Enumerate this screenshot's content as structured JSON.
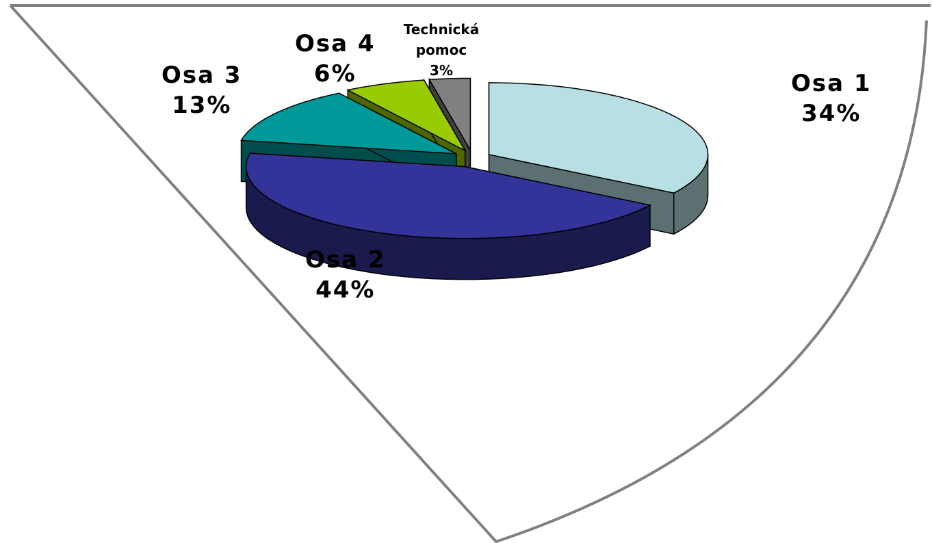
{
  "chart_data": {
    "type": "pie3d",
    "categories": [
      "Osa 1",
      "Osa 2",
      "Osa 3",
      "Osa 4",
      "Technická pomoc"
    ],
    "values": [
      34,
      44,
      13,
      6,
      3
    ],
    "value_labels": [
      "34%",
      "44%",
      "13%",
      "6%",
      "3%"
    ],
    "colors": [
      "#b8e0e4",
      "#333399",
      "#009999",
      "#99cc00",
      "#808080"
    ]
  }
}
